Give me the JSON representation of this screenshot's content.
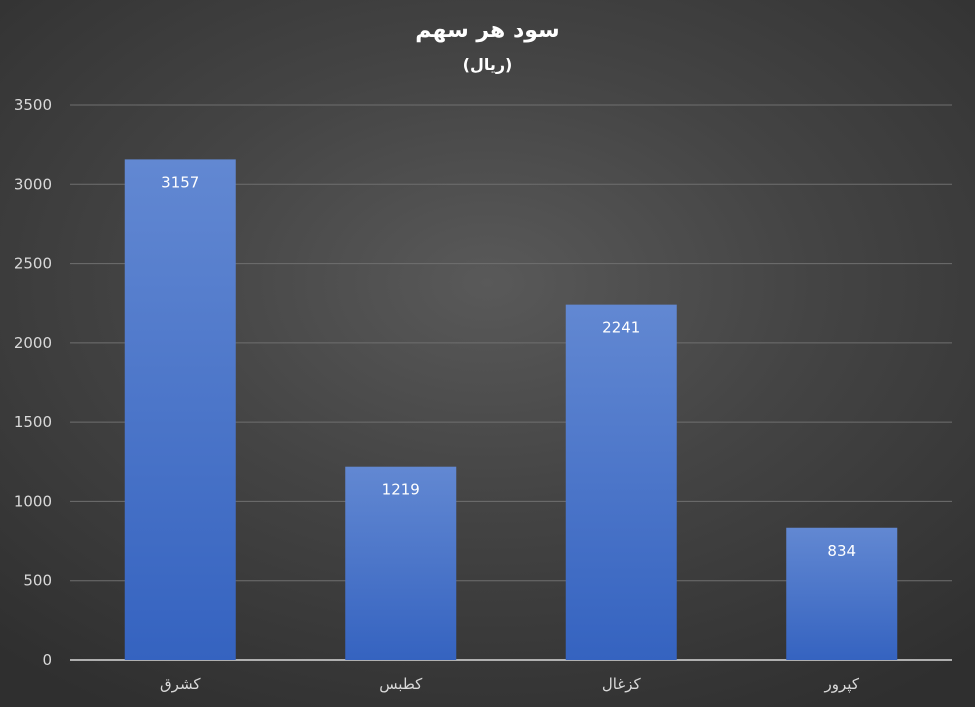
{
  "chart_data": {
    "type": "bar",
    "title": "سود هر سهم",
    "subtitle": "(ریال)",
    "categories": [
      "کشرق",
      "کطبس",
      "کزغال",
      "کپرور"
    ],
    "values": [
      3157,
      1219,
      2241,
      834
    ],
    "ylim": [
      0,
      3500
    ],
    "yticks": [
      0,
      500,
      1000,
      1500,
      2000,
      2500,
      3000,
      3500
    ],
    "grid": true,
    "legend": "none",
    "bar_color": "#4472c4"
  }
}
